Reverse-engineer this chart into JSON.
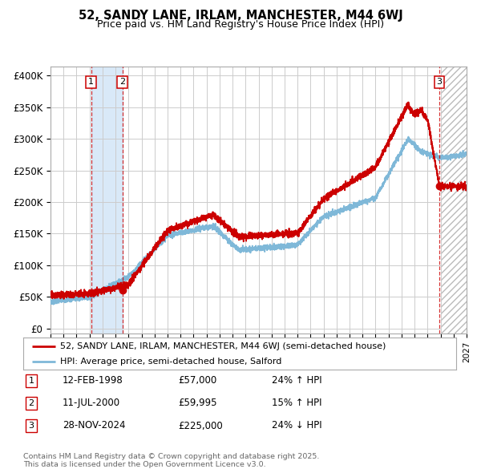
{
  "title": "52, SANDY LANE, IRLAM, MANCHESTER, M44 6WJ",
  "subtitle": "Price paid vs. HM Land Registry's House Price Index (HPI)",
  "hpi_color": "#7fb8d8",
  "price_color": "#cc0000",
  "sale_marker_color": "#cc0000",
  "vline_color": "#cc0000",
  "shade_color": "#d0e4f7",
  "ylabel_vals": [
    0,
    50000,
    100000,
    150000,
    200000,
    250000,
    300000,
    350000,
    400000
  ],
  "ylabel_strs": [
    "£0",
    "£50K",
    "£100K",
    "£150K",
    "£200K",
    "£250K",
    "£300K",
    "£350K",
    "£400K"
  ],
  "xmin": 1995.0,
  "xmax": 2027.0,
  "ymin": -8000,
  "ymax": 415000,
  "sale1_date": 1998.12,
  "sale1_price": 57000,
  "sale1_label": "1",
  "sale2_date": 2000.53,
  "sale2_price": 59995,
  "sale2_label": "2",
  "sale3_date": 2024.91,
  "sale3_price": 225000,
  "sale3_label": "3",
  "legend_red_label": "52, SANDY LANE, IRLAM, MANCHESTER, M44 6WJ (semi-detached house)",
  "legend_blue_label": "HPI: Average price, semi-detached house, Salford",
  "bg_color": "#ffffff",
  "plot_bg_color": "#ffffff",
  "grid_color": "#cccccc",
  "hatch_color": "#bbbbbb",
  "footer": "Contains HM Land Registry data © Crown copyright and database right 2025.\nThis data is licensed under the Open Government Licence v3.0."
}
